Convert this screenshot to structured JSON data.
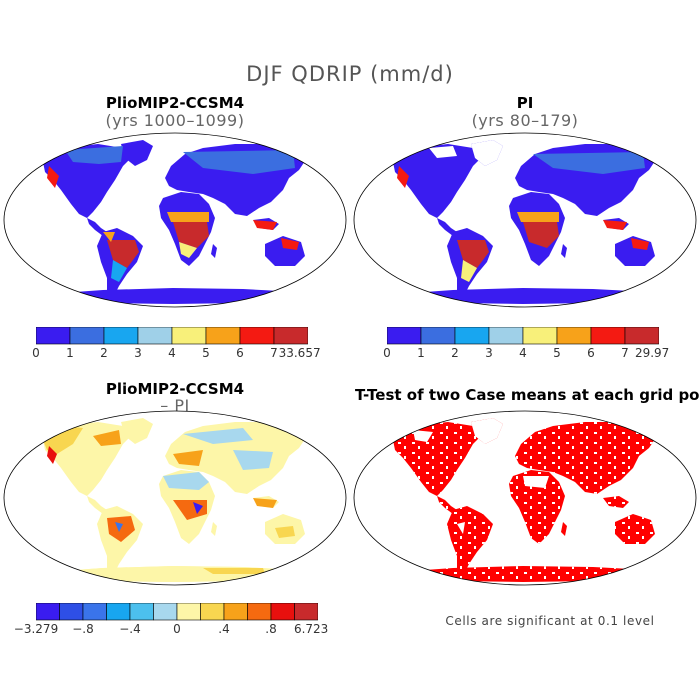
{
  "figure": {
    "title": "DJF QDRIP (mm/d)"
  },
  "panels": [
    {
      "id": "pliomip",
      "title": "PlioMIP2-CCSM4",
      "subtitle": "(yrs 1000–1099)",
      "colorbar": {
        "colors": [
          "#3a1cf0",
          "#3b6ee0",
          "#18a6f0",
          "#9fd0e8",
          "#f8f07a",
          "#f7a21a",
          "#f41a12",
          "#c82a2c"
        ],
        "tick_labels": [
          "0",
          "1",
          "2",
          "3",
          "4",
          "5",
          "6",
          "7",
          "33.657"
        ]
      }
    },
    {
      "id": "pi",
      "title": "PI",
      "subtitle": "(yrs 80–179)",
      "colorbar": {
        "colors": [
          "#3a1cf0",
          "#3b6ee0",
          "#18a6f0",
          "#9fd0e8",
          "#f8f07a",
          "#f7a21a",
          "#f41a12",
          "#c82a2c"
        ],
        "tick_labels": [
          "0",
          "1",
          "2",
          "3",
          "4",
          "5",
          "6",
          "7",
          "29.97"
        ]
      }
    },
    {
      "id": "diff",
      "title": "PlioMIP2-CCSM4",
      "subtitle": "– PI",
      "colorbar": {
        "colors": [
          "#3a1cf0",
          "#2e4fe6",
          "#3a74ea",
          "#18a6f0",
          "#4cc0ee",
          "#a8d8ee",
          "#fdf6a8",
          "#f8d650",
          "#f7a21a",
          "#f56a10",
          "#e8100e",
          "#c82a2c"
        ],
        "tick_labels": [
          "−3.279",
          "−.8",
          "−.4",
          "0",
          ".4",
          ".8",
          "6.723"
        ]
      }
    },
    {
      "id": "ttest",
      "title": "T-Test of two Case means at each grid point",
      "note": "Cells are significant at 0.1 level",
      "significant_color": "#ff0000"
    }
  ]
}
